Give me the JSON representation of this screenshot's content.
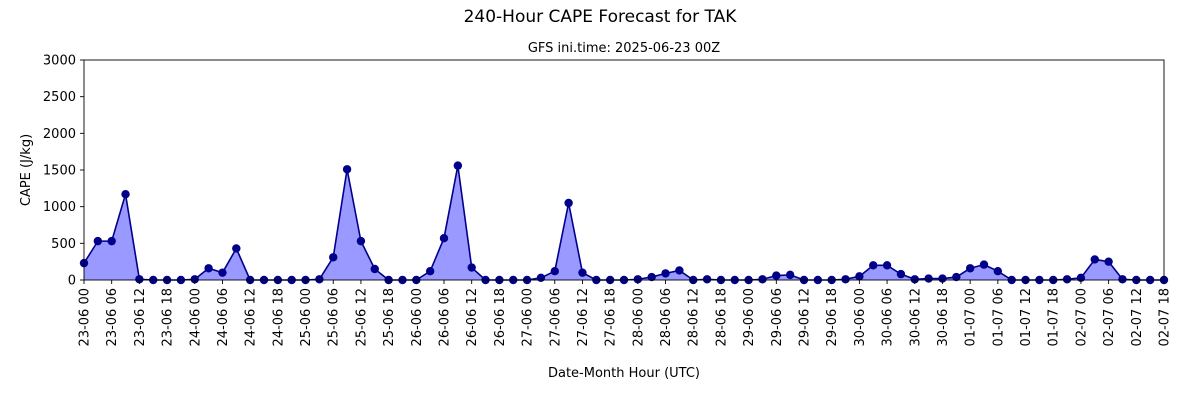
{
  "chart_data": {
    "type": "area",
    "title": "240-Hour CAPE Forecast for TAK",
    "subtitle": "GFS ini.time: 2025-06-23 00Z",
    "xlabel": "Date-Month Hour (UTC)",
    "ylabel": "CAPE (J/kg)",
    "ylim": [
      0,
      3000
    ],
    "yticks": [
      0,
      500,
      1000,
      1500,
      2000,
      2500,
      3000
    ],
    "x_start": "2025-06-23 00Z",
    "x_step_hours": 3,
    "xticks": [
      "23-06 00",
      "23-06 06",
      "23-06 12",
      "23-06 18",
      "24-06 00",
      "24-06 06",
      "24-06 12",
      "24-06 18",
      "25-06 00",
      "25-06 06",
      "25-06 12",
      "25-06 18",
      "26-06 00",
      "26-06 06",
      "26-06 12",
      "26-06 18",
      "27-06 00",
      "27-06 06",
      "27-06 12",
      "27-06 18",
      "28-06 00",
      "28-06 06",
      "28-06 12",
      "28-06 18",
      "29-06 00",
      "29-06 06",
      "29-06 12",
      "29-06 18",
      "30-06 00",
      "30-06 06",
      "30-06 12",
      "30-06 18",
      "01-07 00",
      "01-07 06",
      "01-07 12",
      "01-07 18",
      "02-07 00",
      "02-07 06",
      "02-07 12",
      "02-07 18"
    ],
    "values": [
      230,
      530,
      530,
      1170,
      10,
      0,
      0,
      0,
      10,
      160,
      100,
      430,
      0,
      0,
      0,
      0,
      0,
      10,
      310,
      1510,
      530,
      150,
      0,
      0,
      0,
      120,
      570,
      1560,
      170,
      0,
      0,
      0,
      0,
      30,
      120,
      1050,
      100,
      0,
      0,
      0,
      10,
      40,
      90,
      130,
      0,
      10,
      0,
      0,
      0,
      10,
      60,
      70,
      0,
      0,
      0,
      10,
      50,
      200,
      200,
      80,
      10,
      20,
      20,
      40,
      160,
      210,
      120,
      0,
      0,
      0,
      0,
      10,
      30,
      280,
      250,
      10,
      0,
      0,
      0
    ],
    "grid": false,
    "line_color": "#00008b",
    "fill_color": "#9999ff",
    "marker_color": "#00008b"
  }
}
